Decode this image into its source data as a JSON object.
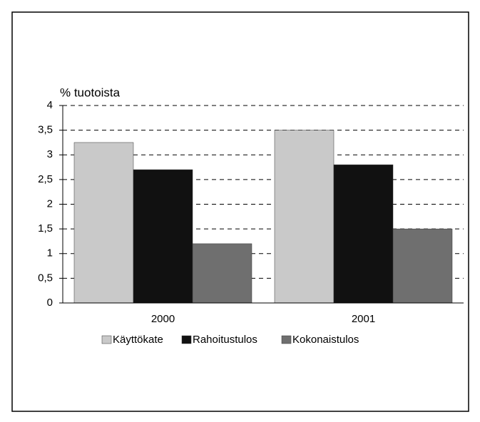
{
  "chart_data": {
    "type": "bar",
    "ylabel": "% tuotoista",
    "categories": [
      "2000",
      "2001"
    ],
    "series": [
      {
        "name": "Käyttökate",
        "color": "#c9c9c9",
        "values": [
          3.25,
          3.5
        ]
      },
      {
        "name": "Rahoitustulos",
        "color": "#111111",
        "values": [
          2.7,
          2.8
        ]
      },
      {
        "name": "Kokonaistulos",
        "color": "#6f6f6f",
        "values": [
          1.2,
          1.5
        ]
      }
    ],
    "ylim": [
      0,
      4
    ],
    "yticks": [
      0,
      {
        "value": 0.5,
        "label": "0,5"
      },
      1,
      {
        "value": 1.5,
        "label": "1,5"
      },
      2,
      {
        "value": 2.5,
        "label": "2,5"
      },
      3,
      {
        "value": 3.5,
        "label": "3,5"
      },
      4
    ],
    "grid": true,
    "legend": "bottom"
  }
}
